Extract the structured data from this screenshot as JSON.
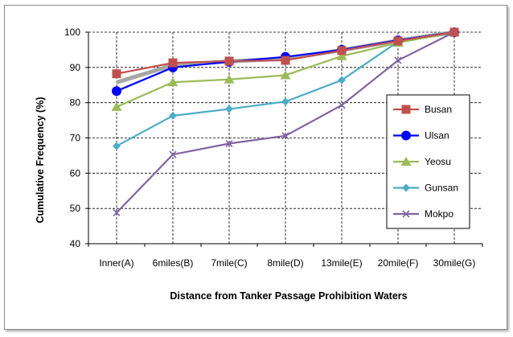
{
  "chart_data": {
    "type": "line",
    "title": "",
    "xlabel": "Distance from Tanker Passage Prohibition Waters",
    "ylabel": "Cumulative Frequency (%)",
    "ylim": [
      40,
      100
    ],
    "yticks": [
      40,
      50,
      60,
      70,
      80,
      90,
      100
    ],
    "grid": "dashed",
    "legend_position": "right",
    "categories": [
      "Inner(A)",
      "6miles(B)",
      "7mile(C)",
      "8mile(D)",
      "13mile(E)",
      "20mile(F)",
      "30mile(G)"
    ],
    "series": [
      {
        "name": "Busan",
        "color": "#c0504d",
        "marker": "square",
        "values": [
          88.2,
          91.3,
          91.8,
          92.0,
          94.8,
          97.5,
          100
        ]
      },
      {
        "name": "Ulsan",
        "color": "#0000ff",
        "marker": "circle",
        "values": [
          83.3,
          90.0,
          91.6,
          93.0,
          95.0,
          97.7,
          100
        ]
      },
      {
        "name": "Yeosu",
        "color": "#9bbb59",
        "marker": "triangle",
        "values": [
          78.8,
          85.8,
          86.6,
          87.8,
          93.2,
          97.0,
          100
        ]
      },
      {
        "name": "Gunsan",
        "color": "#4bacc6",
        "marker": "diamond",
        "values": [
          67.7,
          76.3,
          78.2,
          80.3,
          86.4,
          97.3,
          100
        ]
      },
      {
        "name": "Mokpo",
        "color": "#8064a2",
        "marker": "x",
        "values": [
          48.8,
          65.3,
          68.4,
          70.6,
          79.3,
          92.0,
          100
        ]
      }
    ],
    "average_line_color": "#a6a6a6"
  }
}
